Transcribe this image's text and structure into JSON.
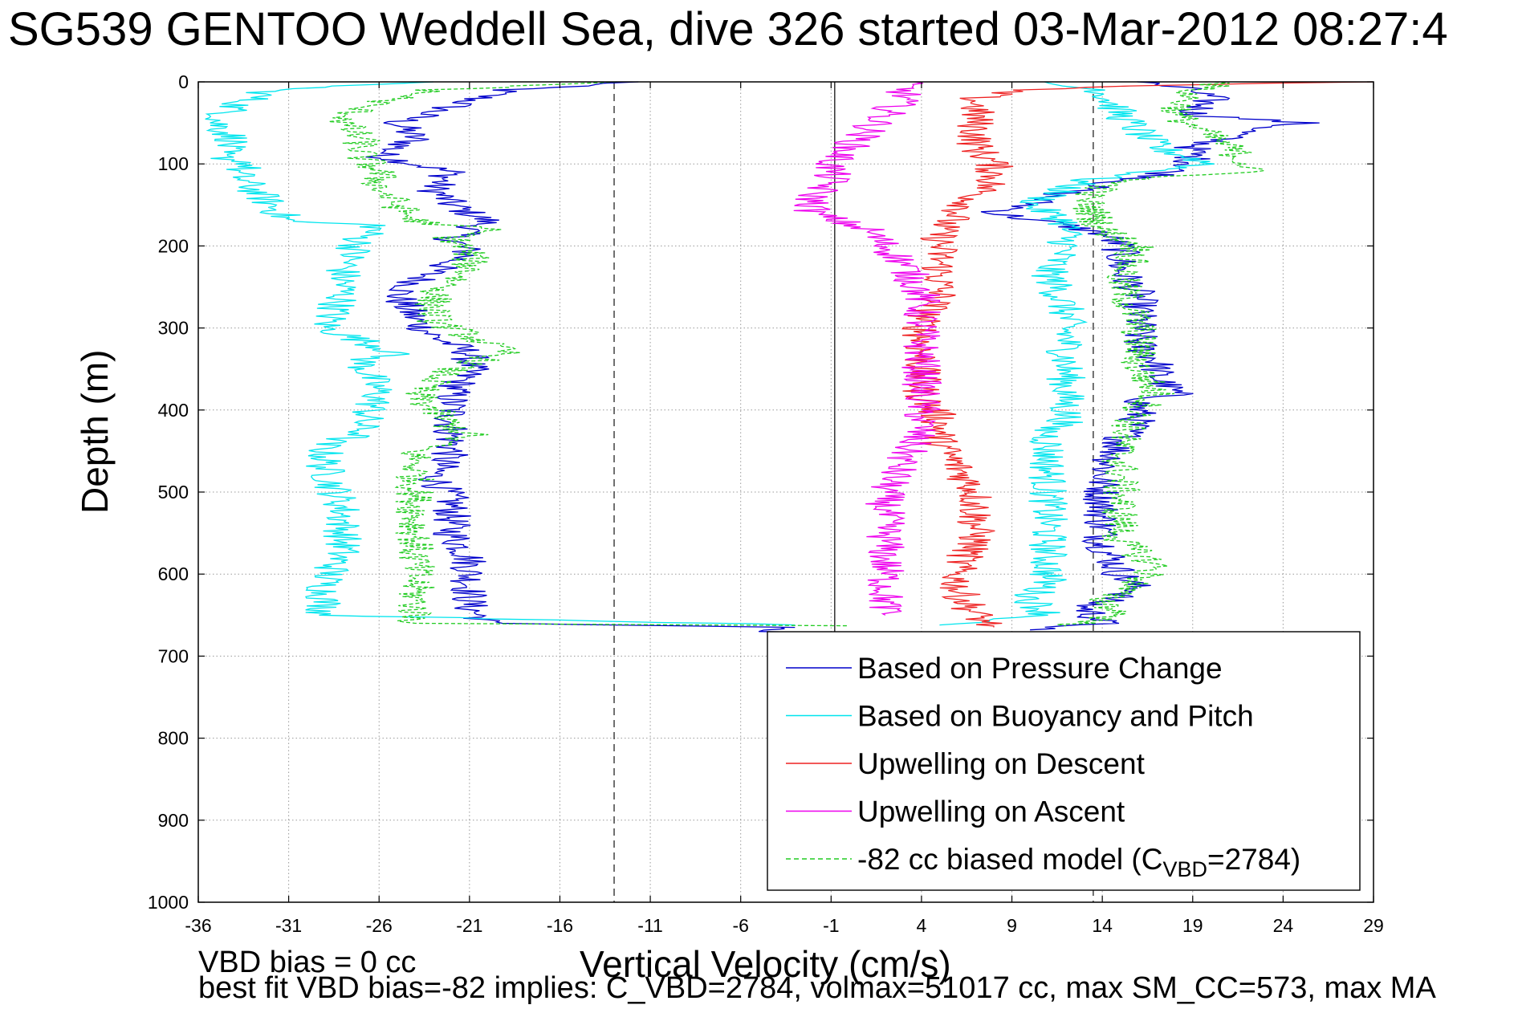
{
  "title": "SG539 GENTOO Weddell Sea, dive 326 started 03-Mar-2012 08:27:4",
  "footer": {
    "line1": "VBD bias = 0 cc",
    "line2": "best fit VBD bias=-82 implies: C_VBD=2784, volmax=51017 cc, max SM_CC=573, max MA"
  },
  "chart_data": {
    "type": "line",
    "xlabel": "Vertical Velocity (cm/s)",
    "ylabel": "Depth (m)",
    "xlim": [
      -36,
      29
    ],
    "ylim": [
      0,
      1000
    ],
    "y_reversed": true,
    "grid": true,
    "xticks": [
      -36,
      -31,
      -26,
      -21,
      -16,
      -11,
      -6,
      -1,
      4,
      9,
      14,
      19,
      24,
      29
    ],
    "yticks": [
      0,
      100,
      200,
      300,
      400,
      500,
      600,
      700,
      800,
      900,
      1000
    ],
    "reference_lines": {
      "solid_vertical": [
        -0.8
      ],
      "dashed_vertical": [
        -13,
        13.5
      ]
    },
    "legend": {
      "position": "lower-right",
      "entries": [
        {
          "label": "Based on Pressure Change",
          "color": "#0000cc",
          "style": "solid"
        },
        {
          "label": "Based on Buoyancy and Pitch",
          "color": "#00e5ee",
          "style": "solid"
        },
        {
          "label": "Upwelling on Descent",
          "color": "#ee2222",
          "style": "solid"
        },
        {
          "label": "Upwelling on Ascent",
          "color": "#ee00ee",
          "style": "solid"
        },
        {
          "label": "-82 cc biased model (C",
          "subscript": "VBD",
          "suffix": "=2784)",
          "color": "#22cc22",
          "style": "dashed"
        }
      ]
    },
    "series": [
      {
        "name": "Based on Pressure Change",
        "color": "#0000cc",
        "segments": [
          {
            "depth": [
              0,
              10,
              30,
              50,
              70,
              90,
              110,
              130,
              150,
              170,
              180,
              190,
              210,
              230,
              260,
              290,
              310,
              330,
              350,
              380,
              420,
              450,
              480,
              510,
              550,
              580,
              610,
              640,
              660,
              665
            ],
            "velocity": [
              -12,
              -19,
              -22,
              -25,
              -24,
              -26,
              -22,
              -23,
              -22,
              -20,
              -21,
              -22,
              -21,
              -23,
              -25,
              -24,
              -23,
              -21,
              -21,
              -22,
              -22,
              -22,
              -23,
              -22,
              -22,
              -21,
              -21,
              -21,
              -20,
              -3
            ]
          },
          {
            "depth": [
              665,
              670,
              672
            ],
            "velocity": [
              -3,
              -5,
              0
            ]
          },
          {
            "depth": [
              0,
              10,
              20,
              40,
              50,
              60,
              80,
              100,
              115,
              125,
              140,
              150,
              160,
              175,
              185,
              200,
              230,
              260,
              290,
              320,
              340,
              360,
              380,
              390,
              410,
              440,
              480,
              520,
              560,
              600,
              620,
              640,
              660,
              668
            ],
            "velocity": [
              16,
              19,
              20,
              19,
              25,
              22,
              19,
              19,
              17,
              14,
              11,
              10,
              8,
              12,
              14,
              15,
              15,
              16,
              16,
              16,
              17,
              17,
              18,
              16,
              16,
              15,
              14,
              14,
              14,
              15,
              16,
              13,
              14,
              10
            ]
          }
        ]
      },
      {
        "name": "Based on Buoyancy and Pitch",
        "color": "#00e5ee",
        "segments": [
          {
            "depth": [
              0,
              10,
              30,
              50,
              70,
              90,
              100,
              110,
              130,
              150,
              170,
              175,
              190,
              230,
              260,
              300,
              330,
              340,
              380,
              420,
              430,
              440,
              470,
              520,
              570,
              610,
              650,
              662
            ],
            "velocity": [
              -24,
              -32,
              -34,
              -35,
              -34,
              -35,
              -33,
              -34,
              -33,
              -32,
              -31,
              -26,
              -27,
              -28,
              -28,
              -29,
              -25,
              -27,
              -26,
              -27,
              -27,
              -29,
              -29,
              -28,
              -28,
              -29,
              -29,
              -3
            ]
          },
          {
            "depth": [
              0,
              5,
              10,
              40,
              80,
              100,
              120,
              140,
              150,
              170,
              200,
              230,
              280,
              330,
              380,
              415,
              420,
              440,
              500,
              560,
              610,
              630,
              650,
              662
            ],
            "velocity": [
              10,
              12,
              14,
              15,
              17,
              20,
              13,
              11,
              10,
              12,
              12,
              11,
              12,
              12,
              12,
              12,
              11,
              11,
              11,
              11,
              11,
              10,
              11,
              5
            ]
          }
        ]
      },
      {
        "name": "Upwelling on Descent",
        "color": "#ee2222",
        "segments": [
          {
            "depth": [
              0,
              5,
              10,
              20,
              40,
              60,
              80,
              100,
              120,
              140,
              160,
              180,
              200,
              230,
              260,
              290,
              320,
              350,
              380,
              410,
              440,
              470,
              500,
              530,
              560,
              590,
              620,
              650,
              665
            ],
            "velocity": [
              28,
              15,
              9,
              7,
              7,
              7,
              7,
              8,
              8,
              7,
              6,
              5,
              5,
              5,
              5,
              4,
              4,
              4,
              4,
              5,
              5,
              6,
              7,
              7,
              7,
              6,
              6,
              7,
              8
            ]
          }
        ]
      },
      {
        "name": "Upwelling on Ascent",
        "color": "#ee00ee",
        "segments": [
          {
            "depth": [
              0,
              20,
              40,
              60,
              80,
              100,
              120,
              140,
              160,
              180,
              200,
              220,
              260,
              300,
              340,
              380,
              420,
              460,
              500,
              540,
              580,
              620,
              650
            ],
            "velocity": [
              3,
              3,
              2,
              1,
              0,
              -1,
              -1,
              -2,
              -2,
              1,
              2,
              3,
              4,
              4,
              4,
              4,
              4,
              3,
              2,
              2,
              2,
              2,
              2
            ]
          }
        ]
      },
      {
        "name": "-82 cc biased model (CVBD=2784)",
        "color": "#22cc22",
        "dashed": true,
        "segments": [
          {
            "depth": [
              0,
              10,
              30,
              50,
              70,
              90,
              110,
              130,
              150,
              170,
              180,
              190,
              210,
              230,
              260,
              290,
              310,
              330,
              350,
              380,
              420,
              430,
              450,
              480,
              510,
              550,
              580,
              610,
              640,
              660,
              663
            ],
            "velocity": [
              -13,
              -23,
              -27,
              -28,
              -27,
              -27,
              -26,
              -26,
              -25,
              -24,
              -20,
              -22,
              -21,
              -21,
              -23,
              -23,
              -21,
              -19,
              -22,
              -24,
              -22,
              -21,
              -24,
              -24,
              -24,
              -24,
              -24,
              -24,
              -24,
              -24,
              0
            ]
          },
          {
            "depth": [
              0,
              10,
              40,
              80,
              100,
              110,
              120,
              140,
              180,
              200,
              240,
              300,
              350,
              380,
              400,
              440,
              480,
              520,
              560,
              590,
              610,
              630,
              650,
              663
            ],
            "velocity": [
              21,
              19,
              18,
              21,
              22,
              22,
              15,
              13,
              14,
              16,
              15,
              16,
              16,
              17,
              16,
              15,
              15,
              15,
              15,
              17,
              16,
              14,
              15,
              12
            ]
          }
        ]
      }
    ]
  }
}
